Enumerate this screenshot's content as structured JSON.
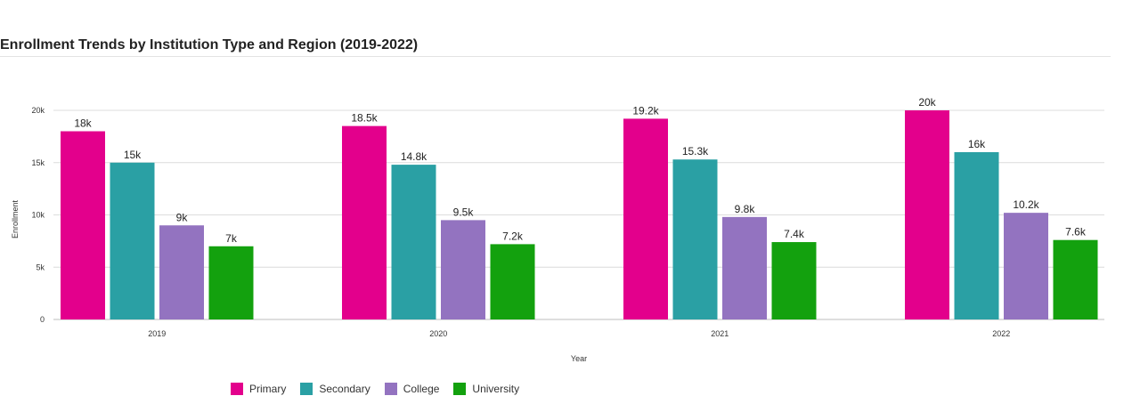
{
  "chart_data": {
    "type": "bar",
    "title": "Enrollment Trends by Institution Type and Region (2019-2022)",
    "xlabel": "Year",
    "ylabel": "Enrollment",
    "categories": [
      "2019",
      "2020",
      "2021",
      "2022"
    ],
    "ylim": [
      0,
      20000
    ],
    "yticks": [
      0,
      5000,
      10000,
      15000,
      20000
    ],
    "ytick_labels": [
      "0",
      "5k",
      "10k",
      "15k",
      "20k"
    ],
    "grid": true,
    "legend_position": "bottom",
    "series": [
      {
        "name": "Primary",
        "color": "#e3008c",
        "values": [
          18000,
          18500,
          19200,
          20000
        ],
        "labels": [
          "18k",
          "18.5k",
          "19.2k",
          "20k"
        ]
      },
      {
        "name": "Secondary",
        "color": "#2aa0a4",
        "values": [
          15000,
          14800,
          15300,
          16000
        ],
        "labels": [
          "15k",
          "14.8k",
          "15.3k",
          "16k"
        ]
      },
      {
        "name": "College",
        "color": "#9373c0",
        "values": [
          9000,
          9500,
          9800,
          10200
        ],
        "labels": [
          "9k",
          "9.5k",
          "9.8k",
          "10.2k"
        ]
      },
      {
        "name": "University",
        "color": "#13a10e",
        "values": [
          7000,
          7200,
          7400,
          7600
        ],
        "labels": [
          "7k",
          "7.2k",
          "7.4k",
          "7.6k"
        ]
      }
    ]
  }
}
